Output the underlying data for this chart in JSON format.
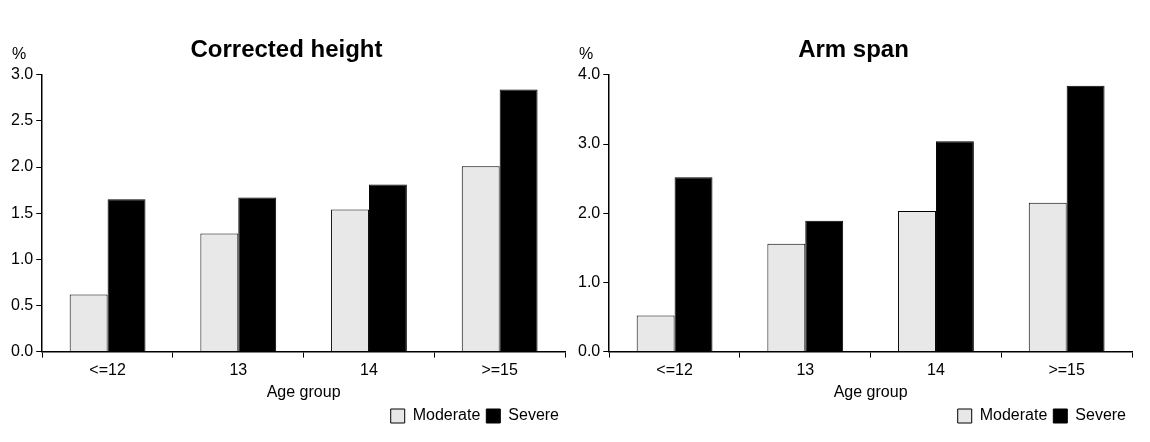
{
  "chart_data": [
    {
      "type": "bar",
      "title": "Corrected height",
      "xlabel": "Age group",
      "ylabel": "%",
      "categories": [
        "<=12",
        "13",
        "14",
        ">=15"
      ],
      "series": [
        {
          "name": "Moderate",
          "color": "#e8e8e8",
          "values": [
            0.62,
            1.28,
            1.54,
            2.01
          ]
        },
        {
          "name": "Severe",
          "color": "#000000",
          "values": [
            1.65,
            1.67,
            1.81,
            2.84
          ]
        }
      ],
      "ylim": [
        0,
        3
      ],
      "yticks": [
        {
          "value": 0,
          "label": "0.0"
        },
        {
          "value": 0.5,
          "label": "0.5"
        },
        {
          "value": 1,
          "label": "1.0"
        },
        {
          "value": 1.5,
          "label": "1.5"
        },
        {
          "value": 2,
          "label": "2.0"
        },
        {
          "value": 2.5,
          "label": "2.5"
        },
        {
          "value": 3,
          "label": "3.0"
        }
      ],
      "grid": false,
      "legend": "bottom right"
    },
    {
      "type": "bar",
      "title": "Arm span",
      "xlabel": "Age group",
      "ylabel": "%",
      "categories": [
        "<=12",
        "13",
        "14",
        ">=15"
      ],
      "series": [
        {
          "name": "Moderate",
          "color": "#e8e8e8",
          "values": [
            0.52,
            1.56,
            2.03,
            2.15
          ]
        },
        {
          "name": "Severe",
          "color": "#000000",
          "values": [
            2.52,
            1.89,
            3.04,
            3.84
          ]
        }
      ],
      "ylim": [
        0,
        4
      ],
      "yticks": [
        {
          "value": 0,
          "label": "0.0"
        },
        {
          "value": 1,
          "label": "1.0"
        },
        {
          "value": 2,
          "label": "2.0"
        },
        {
          "value": 3,
          "label": "3.0"
        },
        {
          "value": 4,
          "label": "4.0"
        }
      ],
      "grid": false,
      "legend": "bottom right"
    }
  ]
}
